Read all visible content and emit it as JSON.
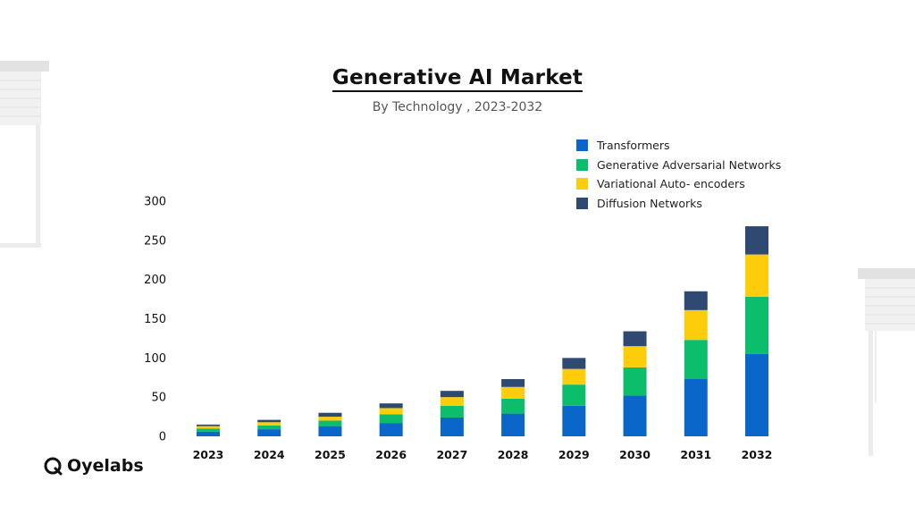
{
  "chart_data": {
    "type": "bar",
    "stacked": true,
    "title": "Generative AI Market",
    "subtitle": "By Technology , 2023-2032",
    "categories": [
      "2023",
      "2024",
      "2025",
      "2026",
      "2027",
      "2028",
      "2029",
      "2030",
      "2031",
      "2032"
    ],
    "series": [
      {
        "name": "Transformers",
        "color": "#0b66c9",
        "values": [
          6,
          9,
          13,
          17,
          24,
          29,
          39,
          52,
          73,
          105
        ]
      },
      {
        "name": "Generative Adversarial Networks",
        "color": "#0cbd6c",
        "values": [
          4,
          5,
          7,
          11,
          15,
          19,
          27,
          36,
          50,
          73
        ]
      },
      {
        "name": "Variational Auto- encoders",
        "color": "#fdcd0b",
        "values": [
          3,
          4,
          5,
          8,
          11,
          15,
          20,
          27,
          38,
          54
        ]
      },
      {
        "name": "Diffusion Networks",
        "color": "#2e4a72",
        "values": [
          2,
          3,
          5,
          6,
          8,
          10,
          14,
          19,
          24,
          36
        ]
      }
    ],
    "y_ticks": [
      "0",
      "50",
      "100",
      "150",
      "200",
      "250",
      "300"
    ],
    "ylim": [
      0,
      300
    ],
    "grid": false,
    "legend": "top-right"
  },
  "brand": {
    "name": "Oyelabs",
    "logo_icon": "oyelabs-logo-icon"
  }
}
